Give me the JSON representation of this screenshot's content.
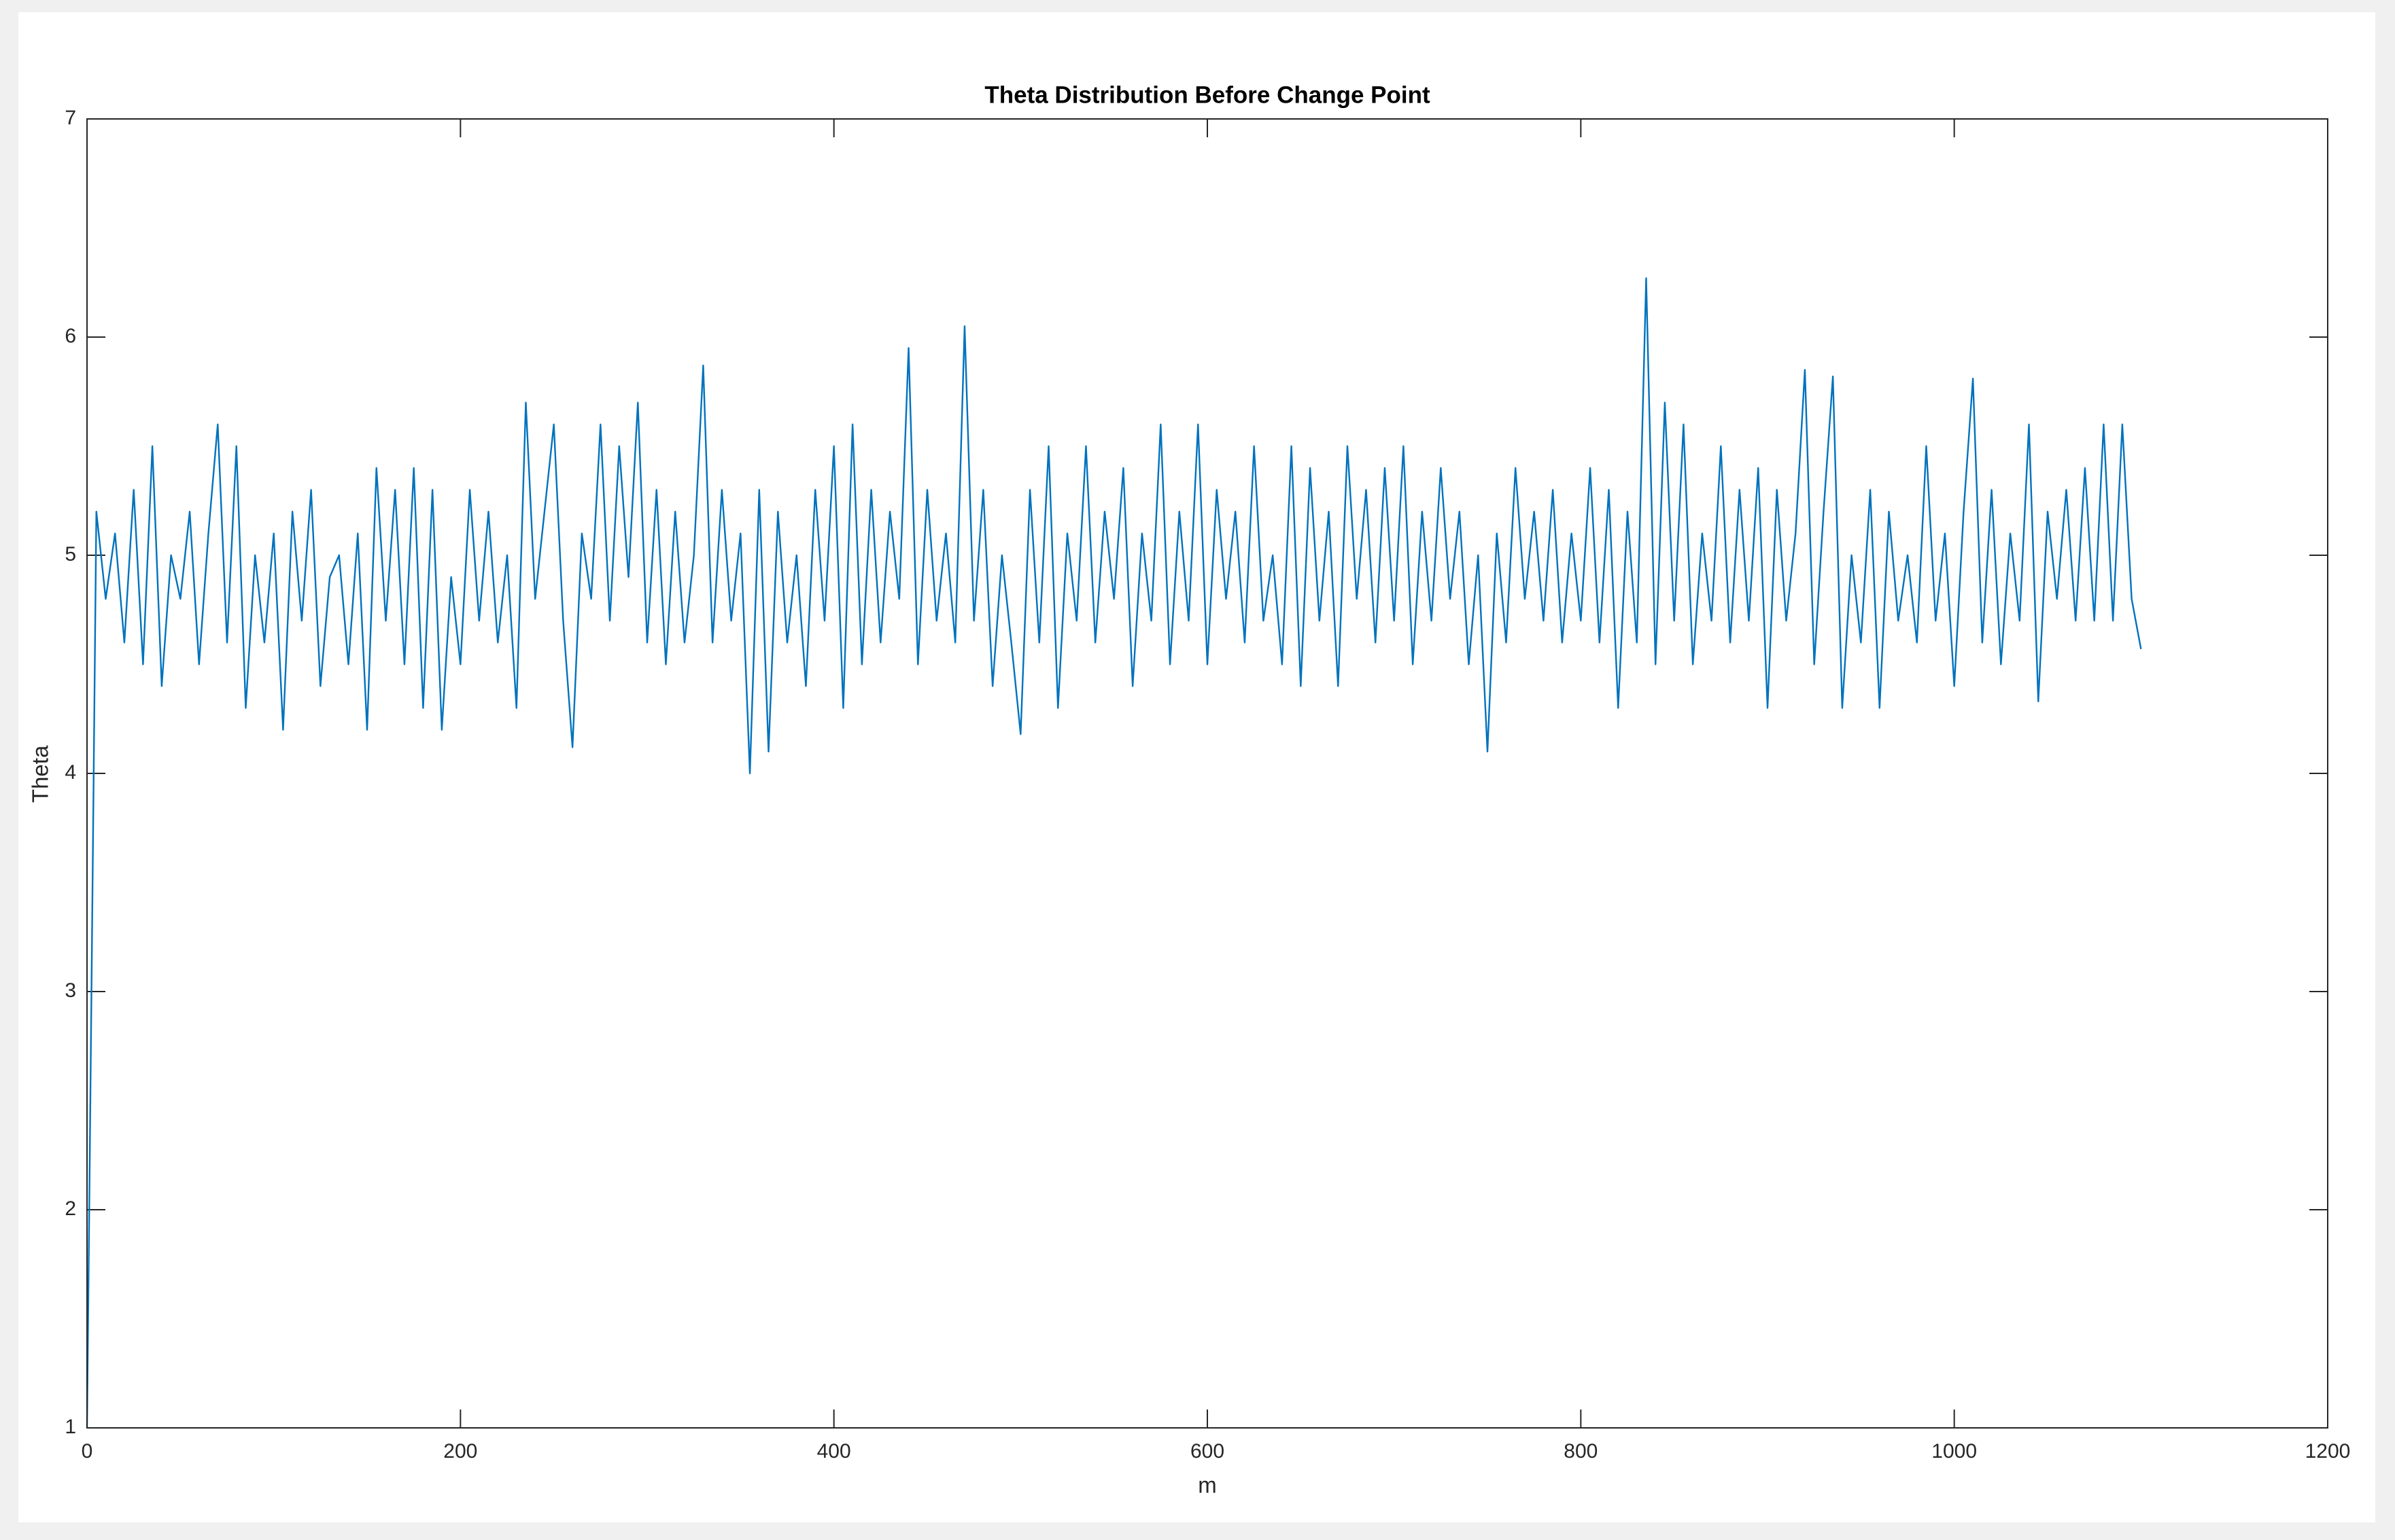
{
  "chart_data": {
    "type": "line",
    "title": "Theta Distribution Before Change Point",
    "x_label": "m",
    "y_label": "Theta",
    "color": "#0072bd",
    "x": [
      0,
      5,
      10,
      15,
      20,
      25,
      30,
      35,
      40,
      45,
      50,
      55,
      60,
      65,
      70,
      75,
      80,
      85,
      90,
      95,
      100,
      105,
      110,
      115,
      120,
      125,
      130,
      135,
      140,
      145,
      150,
      155,
      160,
      165,
      170,
      175,
      180,
      185,
      190,
      195,
      200,
      205,
      210,
      215,
      220,
      225,
      230,
      235,
      240,
      245,
      250,
      255,
      260,
      265,
      270,
      275,
      280,
      285,
      290,
      295,
      300,
      305,
      310,
      315,
      320,
      325,
      330,
      335,
      340,
      345,
      350,
      355,
      360,
      365,
      370,
      375,
      380,
      385,
      390,
      395,
      400,
      405,
      410,
      415,
      420,
      425,
      430,
      435,
      440,
      445,
      450,
      455,
      460,
      465,
      470,
      475,
      480,
      485,
      490,
      495,
      500,
      505,
      510,
      515,
      520,
      525,
      530,
      535,
      540,
      545,
      550,
      555,
      560,
      565,
      570,
      575,
      580,
      585,
      590,
      595,
      600,
      605,
      610,
      615,
      620,
      625,
      630,
      635,
      640,
      645,
      650,
      655,
      660,
      665,
      670,
      675,
      680,
      685,
      690,
      695,
      700,
      705,
      710,
      715,
      720,
      725,
      730,
      735,
      740,
      745,
      750,
      755,
      760,
      765,
      770,
      775,
      780,
      785,
      790,
      795,
      800,
      805,
      810,
      815,
      820,
      825,
      830,
      835,
      840,
      845,
      850,
      855,
      860,
      865,
      870,
      875,
      880,
      885,
      890,
      895,
      900,
      905,
      910,
      915,
      920,
      925,
      930,
      935,
      940,
      945,
      950,
      955,
      960,
      965,
      970,
      975,
      980,
      985,
      990,
      995,
      1000,
      1005,
      1010,
      1015,
      1020,
      1025,
      1030,
      1035,
      1040,
      1045,
      1050,
      1055,
      1060,
      1065,
      1070,
      1075,
      1080,
      1085,
      1090,
      1095,
      1100
    ],
    "values": [
      1,
      5.2,
      4.8,
      5.1,
      4.6,
      5.3,
      4.5,
      5.5,
      4.4,
      5.0,
      4.8,
      5.2,
      4.5,
      5.1,
      5.6,
      4.6,
      5.5,
      4.3,
      5.0,
      4.6,
      5.1,
      4.2,
      5.2,
      4.7,
      5.3,
      4.4,
      4.9,
      5.0,
      4.5,
      5.1,
      4.2,
      5.4,
      4.7,
      5.3,
      4.5,
      5.4,
      4.3,
      5.3,
      4.2,
      4.9,
      4.5,
      5.3,
      4.7,
      5.2,
      4.6,
      5.0,
      4.3,
      5.7,
      4.8,
      5.2,
      5.6,
      4.7,
      4.12,
      5.1,
      4.8,
      5.6,
      4.7,
      5.5,
      4.9,
      5.7,
      4.6,
      5.3,
      4.5,
      5.2,
      4.6,
      5.0,
      5.87,
      4.6,
      5.3,
      4.7,
      5.1,
      4.0,
      5.3,
      4.1,
      5.2,
      4.6,
      5.0,
      4.4,
      5.3,
      4.7,
      5.5,
      4.3,
      5.6,
      4.5,
      5.3,
      4.6,
      5.2,
      4.8,
      5.95,
      4.5,
      5.3,
      4.7,
      5.1,
      4.6,
      6.05,
      4.7,
      5.3,
      4.4,
      5.0,
      4.6,
      4.18,
      5.3,
      4.6,
      5.5,
      4.3,
      5.1,
      4.7,
      5.5,
      4.6,
      5.2,
      4.8,
      5.4,
      4.4,
      5.1,
      4.7,
      5.6,
      4.5,
      5.2,
      4.7,
      5.6,
      4.5,
      5.3,
      4.8,
      5.2,
      4.6,
      5.5,
      4.7,
      5.0,
      4.5,
      5.5,
      4.4,
      5.4,
      4.7,
      5.2,
      4.4,
      5.5,
      4.8,
      5.3,
      4.6,
      5.4,
      4.7,
      5.5,
      4.5,
      5.2,
      4.7,
      5.4,
      4.8,
      5.2,
      4.5,
      5.0,
      4.1,
      5.1,
      4.6,
      5.4,
      4.8,
      5.2,
      4.7,
      5.3,
      4.6,
      5.1,
      4.7,
      5.4,
      4.6,
      5.3,
      4.3,
      5.2,
      4.6,
      6.27,
      4.5,
      5.7,
      4.7,
      5.6,
      4.5,
      5.1,
      4.7,
      5.5,
      4.6,
      5.3,
      4.7,
      5.4,
      4.3,
      5.3,
      4.7,
      5.1,
      5.85,
      4.5,
      5.2,
      5.82,
      4.3,
      5.0,
      4.6,
      5.3,
      4.3,
      5.2,
      4.7,
      5.0,
      4.6,
      5.5,
      4.7,
      5.1,
      4.4,
      5.2,
      5.81,
      4.6,
      5.3,
      4.5,
      5.1,
      4.7,
      5.6,
      4.33,
      5.2,
      4.8,
      5.3,
      4.7,
      5.4,
      4.7,
      5.6,
      4.7,
      5.6,
      4.8,
      4.57
    ],
    "xlim": [
      0,
      1200
    ],
    "xticks": [
      0,
      200,
      400,
      600,
      800,
      1000,
      1200
    ],
    "ylim": [
      1,
      7
    ],
    "yticks": [
      1,
      2,
      3,
      4,
      5,
      6,
      7
    ],
    "grid": false
  }
}
